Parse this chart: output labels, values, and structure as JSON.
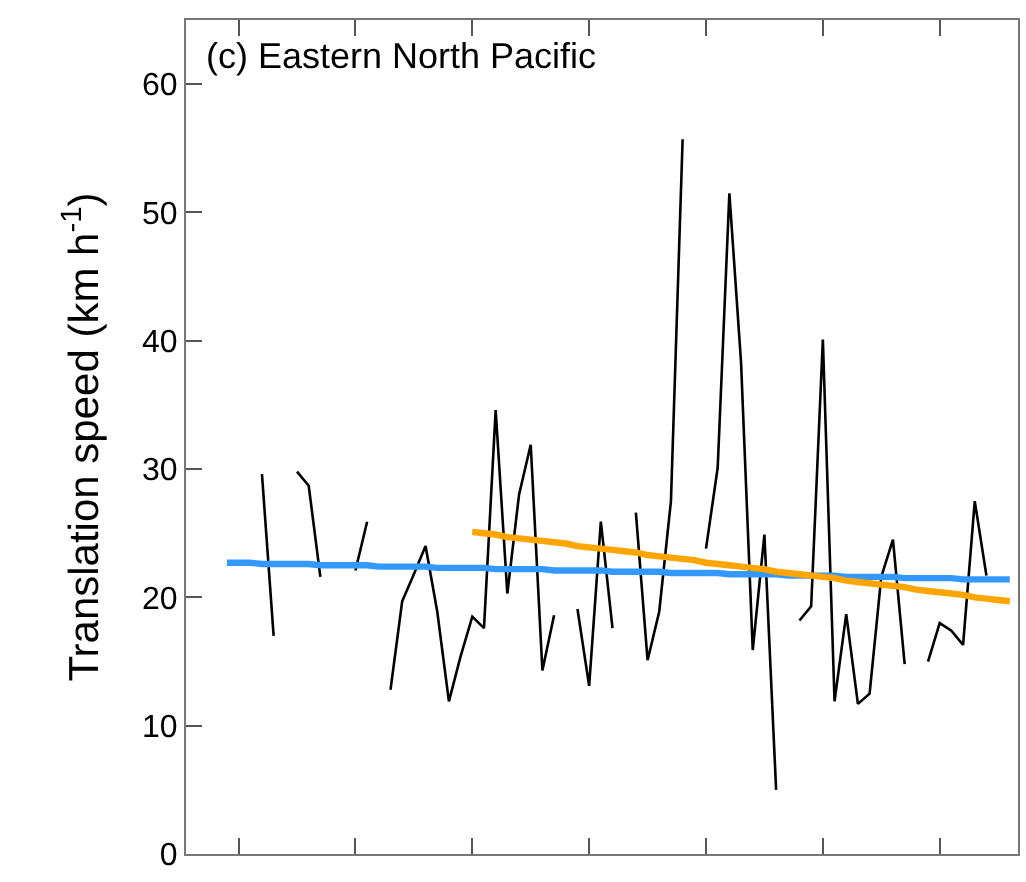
{
  "chart_data": {
    "type": "line",
    "annotations": [
      "(c) Eastern North Pacific"
    ],
    "ylabel": "Translation speed (km h$^{-1}$)",
    "categories": [
      null,
      null,
      null,
      null,
      null,
      null,
      null,
      null,
      null,
      null,
      null,
      null,
      null,
      null,
      null,
      null,
      null,
      null,
      null,
      null,
      null,
      null,
      null,
      null,
      null,
      null,
      null,
      null,
      null,
      null,
      null,
      null,
      null,
      null,
      null,
      null,
      null,
      null,
      null,
      null,
      null,
      null,
      null,
      null,
      null,
      null,
      null,
      null,
      null,
      null,
      null,
      null,
      null,
      null,
      null,
      null,
      null,
      null,
      null,
      null,
      null,
      null,
      null,
      null,
      null,
      null,
      null,
      null,
      null,
      null,
      null
    ],
    "ylim": [
      0,
      65
    ],
    "yticks": [
      0,
      10,
      20,
      30,
      40,
      50,
      60
    ],
    "marker": "none",
    "line_style": "solid",
    "series": [
      {
        "color": "#000000",
        "values": [
          null,
          null,
          null,
          null,
          null,
          null,
          29.6,
          17.0,
          null,
          29.8,
          28.7,
          21.6,
          null,
          null,
          22.1,
          25.9,
          null,
          12.8,
          19.7,
          21.8,
          24.0,
          18.9,
          11.9,
          15.4,
          18.5,
          17.6,
          34.6,
          20.3,
          28.0,
          31.9,
          14.3,
          18.6,
          null,
          19.1,
          13.1,
          25.9,
          17.6,
          null,
          26.6,
          15.1,
          18.9,
          27.5,
          55.7,
          null,
          23.8,
          30.1,
          51.5,
          38.3,
          15.9,
          24.9,
          5.0,
          null,
          18.2,
          19.3,
          40.1,
          11.9,
          18.7,
          11.7,
          12.5,
          21.6,
          24.5,
          14.8,
          null,
          15.0,
          18.0,
          17.4,
          16.3,
          27.5,
          21.7,
          null,
          null
        ]
      },
      {
        "color": "#3399ff",
        "values": [
          null,
          null,
          null,
          22.7,
          22.7,
          22.7,
          22.6,
          22.6,
          22.6,
          22.6,
          22.6,
          22.5,
          22.5,
          22.5,
          22.5,
          22.5,
          22.4,
          22.4,
          22.4,
          22.4,
          22.4,
          22.3,
          22.3,
          22.3,
          22.3,
          22.3,
          22.2,
          22.2,
          22.2,
          22.2,
          22.2,
          22.1,
          22.1,
          22.1,
          22.1,
          22.1,
          22.0,
          22.0,
          22.0,
          22.0,
          22.0,
          21.9,
          21.9,
          21.9,
          21.9,
          21.9,
          21.8,
          21.8,
          21.8,
          21.8,
          21.8,
          21.7,
          21.7,
          21.7,
          21.7,
          21.7,
          21.6,
          21.6,
          21.6,
          21.6,
          21.6,
          21.5,
          21.5,
          21.5,
          21.5,
          21.5,
          21.4,
          21.4,
          21.4,
          21.4,
          21.4
        ]
      },
      {
        "color": "#ffa500",
        "values": [
          null,
          null,
          null,
          null,
          null,
          null,
          null,
          null,
          null,
          null,
          null,
          null,
          null,
          null,
          null,
          null,
          null,
          null,
          null,
          null,
          null,
          null,
          null,
          null,
          25.1,
          25.0,
          24.9,
          24.7,
          24.6,
          24.5,
          24.4,
          24.3,
          24.2,
          24.0,
          23.9,
          23.8,
          23.7,
          23.6,
          23.5,
          23.3,
          23.2,
          23.1,
          23.0,
          22.9,
          22.7,
          22.6,
          22.5,
          22.4,
          22.3,
          22.2,
          22.0,
          21.9,
          21.8,
          21.7,
          21.6,
          21.5,
          21.3,
          21.2,
          21.1,
          21.0,
          20.9,
          20.8,
          20.6,
          20.5,
          20.4,
          20.3,
          20.2,
          20.0,
          19.9,
          19.8,
          19.7
        ]
      }
    ]
  }
}
